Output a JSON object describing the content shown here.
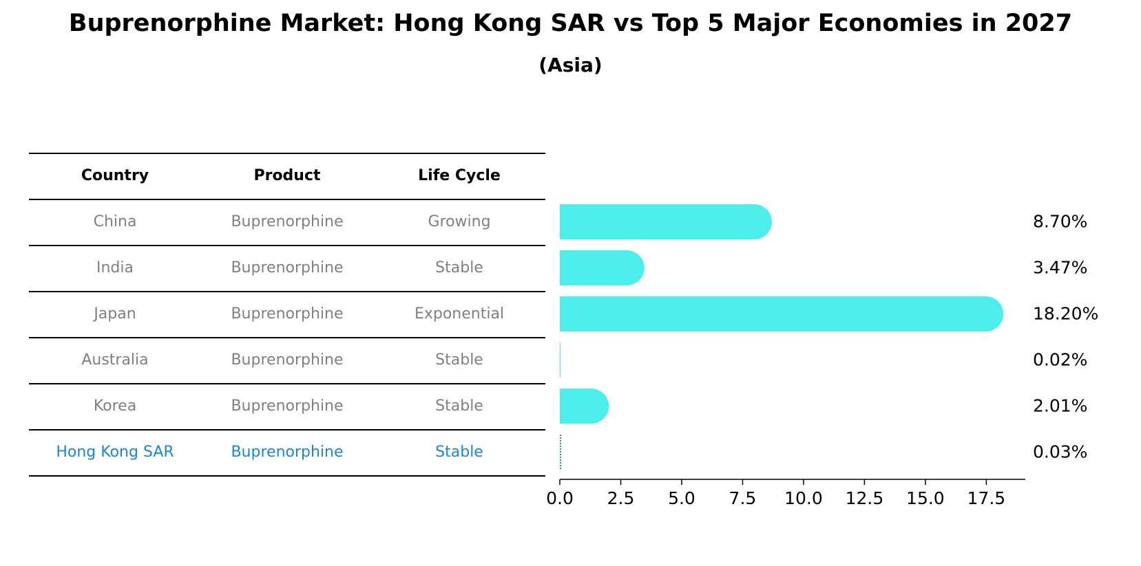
{
  "title": "Buprenorphine Market: Hong Kong SAR vs Top 5 Major Economies in 2027",
  "subtitle": "(Asia)",
  "table": {
    "headers": [
      "Country",
      "Product",
      "Life Cycle"
    ],
    "rows": [
      {
        "country": "China",
        "product": "Buprenorphine",
        "life_cycle": "Growing",
        "highlight": false
      },
      {
        "country": "India",
        "product": "Buprenorphine",
        "life_cycle": "Stable",
        "highlight": false
      },
      {
        "country": "Japan",
        "product": "Buprenorphine",
        "life_cycle": "Exponential",
        "highlight": false
      },
      {
        "country": "Australia",
        "product": "Buprenorphine",
        "life_cycle": "Stable",
        "highlight": false
      },
      {
        "country": "Korea",
        "product": "Buprenorphine",
        "life_cycle": "Stable",
        "highlight": false
      },
      {
        "country": "Hong Kong SAR",
        "product": "Buprenorphine",
        "life_cycle": "Stable",
        "highlight": true
      }
    ],
    "text_color": "#808080",
    "highlight_color": "#1a86d6"
  },
  "chart_data": {
    "type": "bar",
    "orientation": "horizontal",
    "categories": [
      "China",
      "India",
      "Japan",
      "Australia",
      "Korea",
      "Hong Kong SAR"
    ],
    "values": [
      8.7,
      3.47,
      18.2,
      0.02,
      2.01,
      0.03
    ],
    "value_labels": [
      "8.70%",
      "3.47%",
      "18.20%",
      "0.02%",
      "2.01%",
      "0.03%"
    ],
    "xlim": [
      0,
      19.1
    ],
    "xticks": [
      0.0,
      2.5,
      5.0,
      7.5,
      10.0,
      12.5,
      15.0,
      17.5
    ],
    "xtick_labels": [
      "0.0",
      "2.5",
      "5.0",
      "7.5",
      "10.0",
      "12.5",
      "15.0",
      "17.5"
    ],
    "bar_color": "#4beeeb",
    "highlight_color": "#1a86d6",
    "highlight_index": 5,
    "grid": false,
    "title": "",
    "xlabel": "",
    "ylabel": ""
  }
}
